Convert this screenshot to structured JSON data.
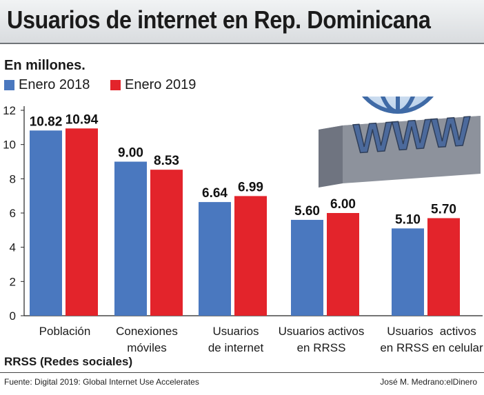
{
  "header": {
    "title": "Usuarios de internet en Rep. Dominicana"
  },
  "unit_label": "En millones.",
  "legend": [
    {
      "label": "Enero 2018",
      "color": "#4a78bf"
    },
    {
      "label": "Enero 2019",
      "color": "#e3242b"
    }
  ],
  "decoration": {
    "icon": "www-globe-icon"
  },
  "note": "RRSS (Redes sociales)",
  "footer": {
    "source": "Fuente: Digital 2019: Global Internet Use Accelerates",
    "credit": "José M. Medrano:elDinero"
  },
  "chart_data": {
    "type": "bar",
    "title": "Usuarios de internet en Rep. Dominicana",
    "ylabel": "En millones.",
    "ylim": [
      0,
      12
    ],
    "yticks": [
      0,
      2,
      4,
      6,
      8,
      10,
      12
    ],
    "grid": false,
    "legend_position": "top-left",
    "categories": [
      [
        "Población"
      ],
      [
        "Conexiones",
        "móviles"
      ],
      [
        "Usuarios",
        "de internet"
      ],
      [
        "Usuarios activos",
        "en RRSS"
      ],
      [
        "Usuarios  activos",
        "en RRSS en celular"
      ]
    ],
    "series": [
      {
        "name": "Enero 2018",
        "color": "#4a78bf",
        "values": [
          10.82,
          9.0,
          6.64,
          5.6,
          5.1
        ],
        "labels": [
          "10.82",
          "9.00",
          "6.64",
          "5.60",
          "5.10"
        ]
      },
      {
        "name": "Enero 2019",
        "color": "#e3242b",
        "values": [
          10.94,
          8.53,
          6.99,
          6.0,
          5.7
        ],
        "labels": [
          "10.94",
          "8.53",
          "6.99",
          "6.00",
          "5.70"
        ]
      }
    ]
  }
}
